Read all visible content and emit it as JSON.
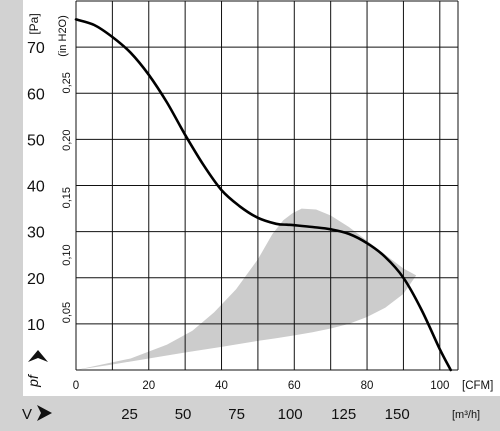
{
  "chart_data": {
    "type": "line",
    "title": "",
    "y_axis": {
      "unit_label": "[Pa]",
      "label": "pf",
      "range": [
        0,
        80
      ],
      "ticks": [
        10,
        20,
        30,
        40,
        50,
        60,
        70
      ],
      "tick_labels": [
        "10",
        "20",
        "30",
        "40",
        "50",
        "60",
        "70"
      ],
      "gridlines": [
        0,
        10,
        20,
        30,
        40,
        50,
        60,
        70,
        80
      ]
    },
    "y2_axis": {
      "unit_label": "(in H2O)",
      "ticks": [
        0.05,
        0.1,
        0.15,
        0.2,
        0.25
      ],
      "tick_labels": [
        "0,05",
        "0,10",
        "0,15",
        "0,20",
        "0,25"
      ]
    },
    "x_axis": {
      "unit_label": "[CFM]",
      "range": [
        0,
        105
      ],
      "ticks": [
        0,
        20,
        40,
        60,
        80,
        100
      ],
      "tick_labels": [
        "0",
        "20",
        "40",
        "60",
        "80",
        "100"
      ],
      "gridlines": [
        0,
        10,
        20,
        30,
        40,
        50,
        60,
        70,
        80,
        90,
        100,
        105
      ]
    },
    "x2_axis": {
      "label": "V",
      "unit_label": "[m³/h]",
      "ticks": [
        25,
        50,
        75,
        100,
        125,
        150
      ],
      "tick_labels": [
        "25",
        "50",
        "75",
        "100",
        "125",
        "150"
      ]
    },
    "series": [
      {
        "color": "#000000",
        "x": [
          0,
          5,
          10,
          15,
          20,
          25,
          30,
          35,
          40,
          45,
          50,
          55,
          58,
          60,
          65,
          70,
          75,
          80,
          85,
          90,
          95,
          100,
          103
        ],
        "y": [
          76,
          74.8,
          72.2,
          68.8,
          64,
          58,
          51,
          44.5,
          39,
          35.5,
          33,
          31.7,
          31.5,
          31.4,
          31,
          30.5,
          29.5,
          27.5,
          24.5,
          20,
          13,
          4.5,
          0
        ]
      }
    ],
    "operating_region": {
      "color": "#cccccc",
      "upper": {
        "x": [
          0,
          15,
          25,
          32,
          38,
          44,
          50,
          54,
          57,
          59.5,
          62,
          66,
          70,
          75,
          80,
          85,
          90,
          93.5
        ],
        "y": [
          0,
          2.5,
          5.5,
          8.5,
          12.5,
          17.5,
          24,
          29.5,
          32.5,
          34,
          35,
          34.8,
          33.5,
          31,
          28,
          25,
          22,
          20.5
        ]
      },
      "lower": {
        "x": [
          93.5,
          90,
          85,
          80,
          75,
          70,
          65,
          60,
          55,
          50,
          40,
          30,
          20,
          10,
          0
        ],
        "y": [
          20.5,
          16.5,
          13.5,
          11.5,
          10,
          9,
          8.2,
          7.5,
          6.9,
          6.3,
          5,
          3.8,
          2.5,
          1.2,
          0
        ]
      }
    },
    "grid": true
  }
}
